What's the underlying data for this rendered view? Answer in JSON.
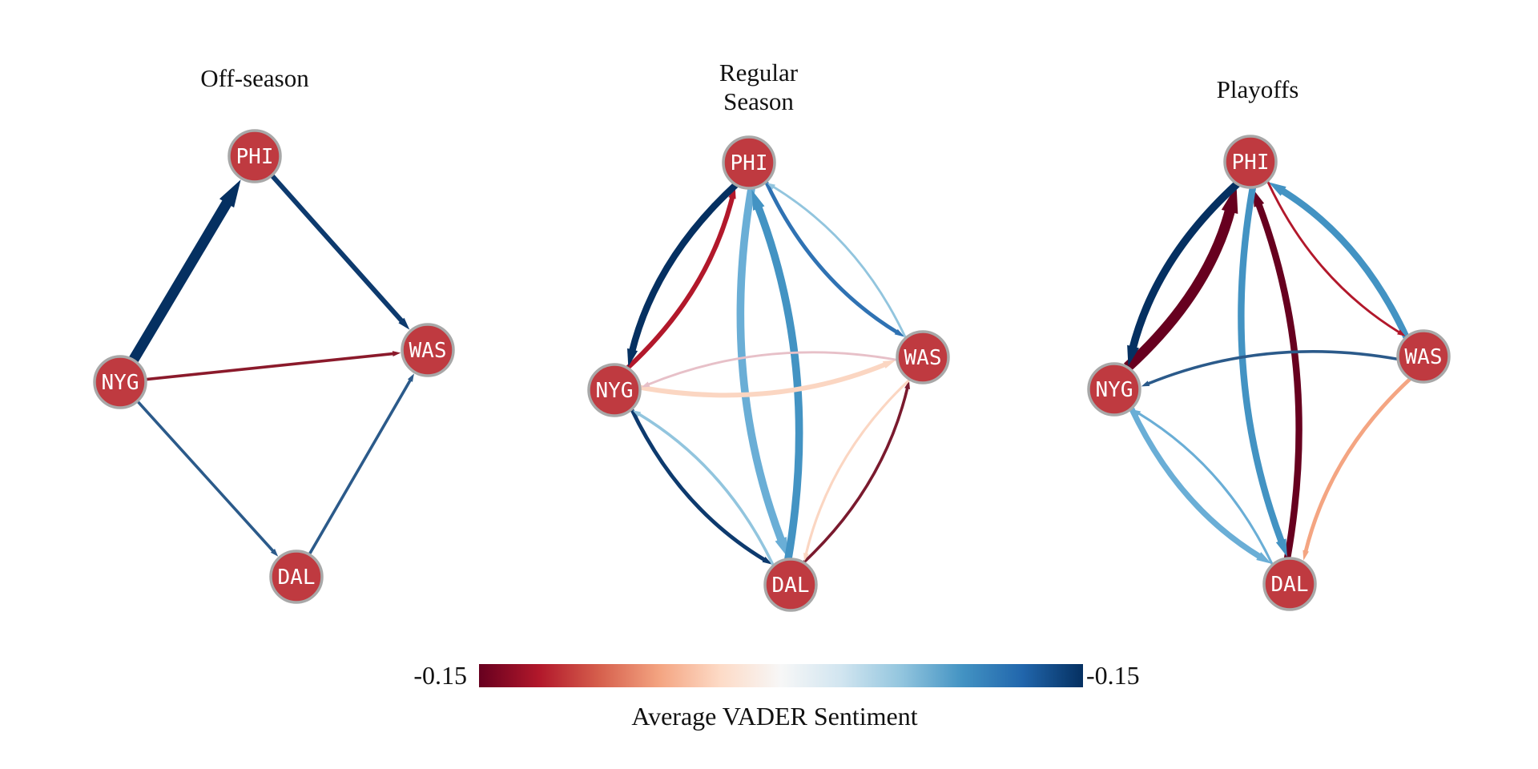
{
  "colorbar": {
    "min_label": "-0.15",
    "max_label": "-0.15",
    "title": "Average VADER Sentiment",
    "stops": [
      "#67001f",
      "#b2182b",
      "#d6604d",
      "#f4a582",
      "#fddbc7",
      "#f7f7f7",
      "#d1e5f0",
      "#92c5de",
      "#4393c3",
      "#2166ac",
      "#053061"
    ]
  },
  "node_style": {
    "fill": "#c0392b",
    "fill_actual": "#bf3a40",
    "stroke": "#a8a8a8"
  },
  "panels": [
    {
      "title_lines": [
        "Off-season"
      ],
      "nodes": [
        "PHI",
        "WAS",
        "NYG",
        "DAL"
      ],
      "edges": [
        {
          "from": "NYG",
          "to": "PHI",
          "weight": 5,
          "color": "#053061"
        },
        {
          "from": "PHI",
          "to": "WAS",
          "weight": 2,
          "color": "#0d3a6e"
        },
        {
          "from": "NYG",
          "to": "WAS",
          "weight": 1,
          "color": "#8b1a2b"
        },
        {
          "from": "NYG",
          "to": "DAL",
          "weight": 1,
          "color": "#2b5a8a"
        },
        {
          "from": "DAL",
          "to": "WAS",
          "weight": 1,
          "color": "#2b5a8a"
        }
      ]
    },
    {
      "title_lines": [
        "Regular",
        "Season"
      ],
      "nodes": [
        "PHI",
        "WAS",
        "NYG",
        "DAL"
      ],
      "edges": [
        {
          "from": "NYG",
          "to": "PHI",
          "weight": 2,
          "color": "#b2182b"
        },
        {
          "from": "PHI",
          "to": "NYG",
          "weight": 3,
          "color": "#053061"
        },
        {
          "from": "PHI",
          "to": "WAS",
          "weight": 1.5,
          "color": "#2f72b3"
        },
        {
          "from": "WAS",
          "to": "PHI",
          "weight": 0.7,
          "color": "#92c5de"
        },
        {
          "from": "PHI",
          "to": "DAL",
          "weight": 3.5,
          "color": "#6aaed6"
        },
        {
          "from": "DAL",
          "to": "PHI",
          "weight": 3.5,
          "color": "#4393c3"
        },
        {
          "from": "NYG",
          "to": "WAS",
          "weight": 2,
          "color": "#fbd6c2"
        },
        {
          "from": "WAS",
          "to": "NYG",
          "weight": 0.7,
          "color": "#e7c0c8"
        },
        {
          "from": "NYG",
          "to": "DAL",
          "weight": 1.5,
          "color": "#0d3a6e"
        },
        {
          "from": "DAL",
          "to": "NYG",
          "weight": 1,
          "color": "#92c5de"
        },
        {
          "from": "DAL",
          "to": "WAS",
          "weight": 1,
          "color": "#7a1a2e"
        },
        {
          "from": "WAS",
          "to": "DAL",
          "weight": 0.8,
          "color": "#fbd6c2"
        }
      ]
    },
    {
      "title_lines": [
        "Playoffs"
      ],
      "nodes": [
        "PHI",
        "WAS",
        "NYG",
        "DAL"
      ],
      "edges": [
        {
          "from": "NYG",
          "to": "PHI",
          "weight": 5,
          "color": "#67001f"
        },
        {
          "from": "PHI",
          "to": "NYG",
          "weight": 3.5,
          "color": "#053061"
        },
        {
          "from": "WAS",
          "to": "PHI",
          "weight": 3,
          "color": "#4393c3"
        },
        {
          "from": "PHI",
          "to": "WAS",
          "weight": 0.7,
          "color": "#b2182b"
        },
        {
          "from": "DAL",
          "to": "PHI",
          "weight": 3,
          "color": "#67001f"
        },
        {
          "from": "PHI",
          "to": "DAL",
          "weight": 3,
          "color": "#4393c3"
        },
        {
          "from": "WAS",
          "to": "NYG",
          "weight": 1,
          "color": "#2b5a8a"
        },
        {
          "from": "NYG",
          "to": "DAL",
          "weight": 2.5,
          "color": "#6aaed6"
        },
        {
          "from": "DAL",
          "to": "NYG",
          "weight": 0.8,
          "color": "#6aaed6"
        },
        {
          "from": "WAS",
          "to": "DAL",
          "weight": 1.5,
          "color": "#f4a582"
        }
      ]
    }
  ]
}
